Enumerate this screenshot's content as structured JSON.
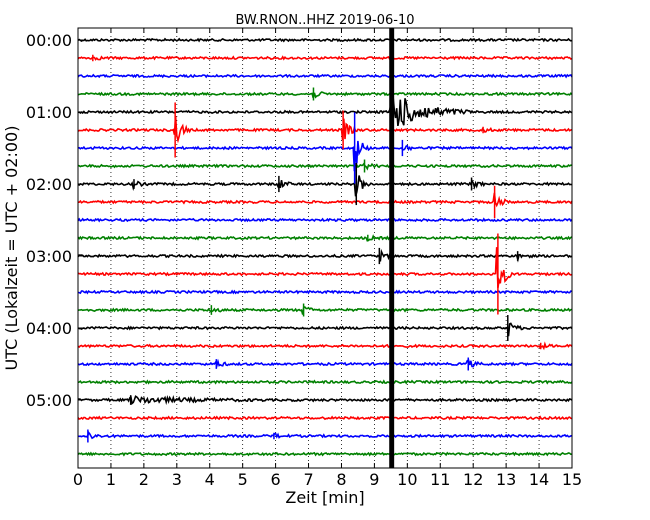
{
  "chart_data": {
    "type": "line",
    "title": "BW.RNON..HHZ 2019-06-10",
    "xlabel": "Zeit  [min]",
    "ylabel": "UTC (Lokalzeit = UTC + 02:00)",
    "xlim": [
      0,
      15
    ],
    "x_ticks": [
      "0",
      "1",
      "2",
      "3",
      "4",
      "5",
      "6",
      "7",
      "8",
      "9",
      "10",
      "11",
      "12",
      "13",
      "14",
      "15"
    ],
    "y_ticks": [
      "00:00",
      "01:00",
      "02:00",
      "03:00",
      "04:00",
      "05:00"
    ],
    "grid": true,
    "trace_colors": [
      "#000000",
      "#ff0000",
      "#0000ff",
      "#008000"
    ],
    "traces_per_hour": 4,
    "trace_count": 24,
    "trace_interval_minutes": 15,
    "continuous_signal": {
      "x_start": 9.45,
      "x_end": 9.6
    },
    "events": [
      {
        "trace": 1,
        "x": 0.45,
        "amp": 0.2
      },
      {
        "trace": 3,
        "x": 7.15,
        "amp": 0.4
      },
      {
        "trace": 4,
        "x": 9.5,
        "amp": 2.0,
        "decay": 0.8
      },
      {
        "trace": 5,
        "x": 2.95,
        "amp": 1.7
      },
      {
        "trace": 5,
        "x": 8.05,
        "amp": 1.2
      },
      {
        "trace": 5,
        "x": 12.3,
        "amp": 0.2
      },
      {
        "trace": 6,
        "x": 8.4,
        "amp": 2.2
      },
      {
        "trace": 6,
        "x": 9.85,
        "amp": 0.5
      },
      {
        "trace": 7,
        "x": 8.7,
        "amp": 0.4
      },
      {
        "trace": 8,
        "x": 1.7,
        "amp": 0.3
      },
      {
        "trace": 8,
        "x": 6.1,
        "amp": 0.5
      },
      {
        "trace": 8,
        "x": 8.45,
        "amp": 1.3
      },
      {
        "trace": 8,
        "x": 11.95,
        "amp": 0.4
      },
      {
        "trace": 9,
        "x": 12.65,
        "amp": 1.0
      },
      {
        "trace": 11,
        "x": 8.8,
        "amp": 0.2
      },
      {
        "trace": 12,
        "x": 9.15,
        "amp": 0.5
      },
      {
        "trace": 12,
        "x": 13.35,
        "amp": 0.3
      },
      {
        "trace": 13,
        "x": 12.75,
        "amp": 2.5
      },
      {
        "trace": 15,
        "x": 4.05,
        "amp": 0.3
      },
      {
        "trace": 15,
        "x": 6.85,
        "amp": 0.4
      },
      {
        "trace": 16,
        "x": 13.05,
        "amp": 0.8
      },
      {
        "trace": 17,
        "x": 14.05,
        "amp": 0.2
      },
      {
        "trace": 18,
        "x": 4.2,
        "amp": 0.3
      },
      {
        "trace": 18,
        "x": 11.85,
        "amp": 0.4
      },
      {
        "trace": 20,
        "x": 1.6,
        "amp": 0.3,
        "decay": 1.4
      },
      {
        "trace": 22,
        "x": 0.3,
        "amp": 0.4
      },
      {
        "trace": 22,
        "x": 5.95,
        "amp": 0.2
      }
    ]
  }
}
